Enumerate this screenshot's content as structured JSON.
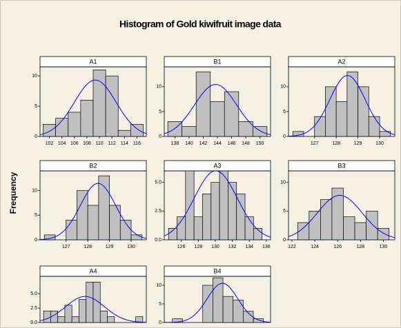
{
  "title": "Histogram of Gold kiwifruit image data",
  "y_label": "Frequency",
  "chart_data": [
    {
      "type": "histogram",
      "title": "A1",
      "bins": [
        101,
        103,
        105,
        107,
        109,
        111,
        113,
        115,
        117
      ],
      "values": [
        2,
        3,
        4,
        6,
        11,
        10,
        1,
        2
      ],
      "xlim": [
        100.5,
        117.5
      ],
      "xticks": [
        102,
        104,
        106,
        108,
        110,
        112,
        114,
        116
      ],
      "ylim": [
        0,
        11.5
      ],
      "yticks": [
        0,
        5,
        10
      ],
      "color": "#c0c0c0",
      "curve_color": "#0000ff"
    },
    {
      "type": "histogram",
      "title": "B1",
      "bins": [
        137,
        139,
        141,
        143,
        145,
        147,
        149,
        151
      ],
      "values": [
        3,
        2,
        13,
        7,
        9,
        3,
        2
      ],
      "xlim": [
        136.5,
        151.5
      ],
      "xticks": [
        138,
        140,
        142,
        144,
        146,
        148,
        150
      ],
      "ylim": [
        0,
        14
      ],
      "yticks": [
        0,
        5,
        10
      ],
      "color": "#c0c0c0",
      "curve_color": "#0000ff"
    },
    {
      "type": "histogram",
      "title": "A2",
      "bins": [
        126,
        126.5,
        127,
        127.5,
        128,
        128.5,
        129,
        129.5,
        130,
        130.5
      ],
      "values": [
        1,
        0,
        4,
        10,
        7,
        13,
        10,
        4,
        1
      ],
      "xlim": [
        125.8,
        130.7
      ],
      "xticks": [
        127,
        128,
        129,
        130
      ],
      "ylim": [
        0,
        14
      ],
      "yticks": [
        0,
        5,
        10
      ],
      "color": "#c0c0c0",
      "curve_color": "#0000ff"
    },
    {
      "type": "histogram",
      "title": "B2",
      "bins": [
        126,
        126.5,
        127,
        127.5,
        128,
        128.5,
        129,
        129.5,
        130,
        130.5
      ],
      "values": [
        1,
        0,
        4,
        10,
        7,
        13,
        7,
        4,
        1
      ],
      "xlim": [
        125.8,
        130.7
      ],
      "xticks": [
        127,
        128,
        129,
        130
      ],
      "ylim": [
        0,
        14
      ],
      "yticks": [
        0,
        5,
        10
      ],
      "color": "#c0c0c0",
      "curve_color": "#0000ff"
    },
    {
      "type": "histogram",
      "title": "A3",
      "bins": [
        124.5,
        125.5,
        126.5,
        127.5,
        128.5,
        129.5,
        130.5,
        131.5,
        132.5,
        133.5,
        134.5,
        135.5
      ],
      "values": [
        1,
        2,
        6,
        2,
        4,
        5,
        6,
        5,
        4,
        2,
        1
      ],
      "xlim": [
        124,
        136.5
      ],
      "xticks": [
        126,
        128,
        130,
        132,
        134,
        136
      ],
      "ylim": [
        0,
        6
      ],
      "yticks": [
        {
          "value": 0,
          "label": "0.0"
        },
        {
          "value": 2.5,
          "label": "2.5"
        },
        {
          "value": 5,
          "label": "5.0"
        }
      ],
      "color": "#c0c0c0",
      "curve_color": "#0000ff"
    },
    {
      "type": "histogram",
      "title": "B3",
      "bins": [
        122.5,
        123.5,
        124.5,
        125.5,
        126.5,
        127.5,
        128.5,
        129.5,
        130.5
      ],
      "values": [
        3,
        5,
        7,
        9,
        4,
        3,
        5,
        2
      ],
      "xlim": [
        121.7,
        131
      ],
      "xticks": [
        122,
        124,
        126,
        128,
        130
      ],
      "ylim": [
        0,
        12
      ],
      "yticks": [
        0,
        5,
        10
      ],
      "color": "#c0c0c0",
      "curve_color": "#0000ff"
    },
    {
      "type": "histogram",
      "title": "A4",
      "bins": [
        1,
        2,
        3,
        4,
        5,
        6,
        7,
        8,
        9,
        10,
        11,
        12,
        13,
        14,
        15
      ],
      "values": [
        2,
        2,
        1,
        3,
        1,
        4,
        7,
        7,
        2,
        1,
        0,
        0,
        0,
        1
      ],
      "xlim": [
        0.5,
        15.5
      ],
      "ylim": [
        0,
        8
      ],
      "yticks": [
        {
          "value": 0,
          "label": "0.0"
        },
        {
          "value": 2.5,
          "label": "2.5"
        },
        {
          "value": 5,
          "label": "5.0"
        }
      ],
      "color": "#c0c0c0",
      "curve_color": "#0000ff"
    },
    {
      "type": "histogram",
      "title": "B4",
      "bins": [
        1,
        2,
        3,
        4,
        5,
        6,
        7,
        8,
        9,
        10
      ],
      "values": [
        1,
        0,
        0,
        10,
        12,
        7,
        6,
        3,
        1
      ],
      "xlim": [
        0.2,
        10.7
      ],
      "ylim": [
        0,
        12.4
      ],
      "yticks": [
        0,
        5,
        10
      ],
      "color": "#c0c0c0",
      "curve_color": "#0000ff"
    }
  ]
}
